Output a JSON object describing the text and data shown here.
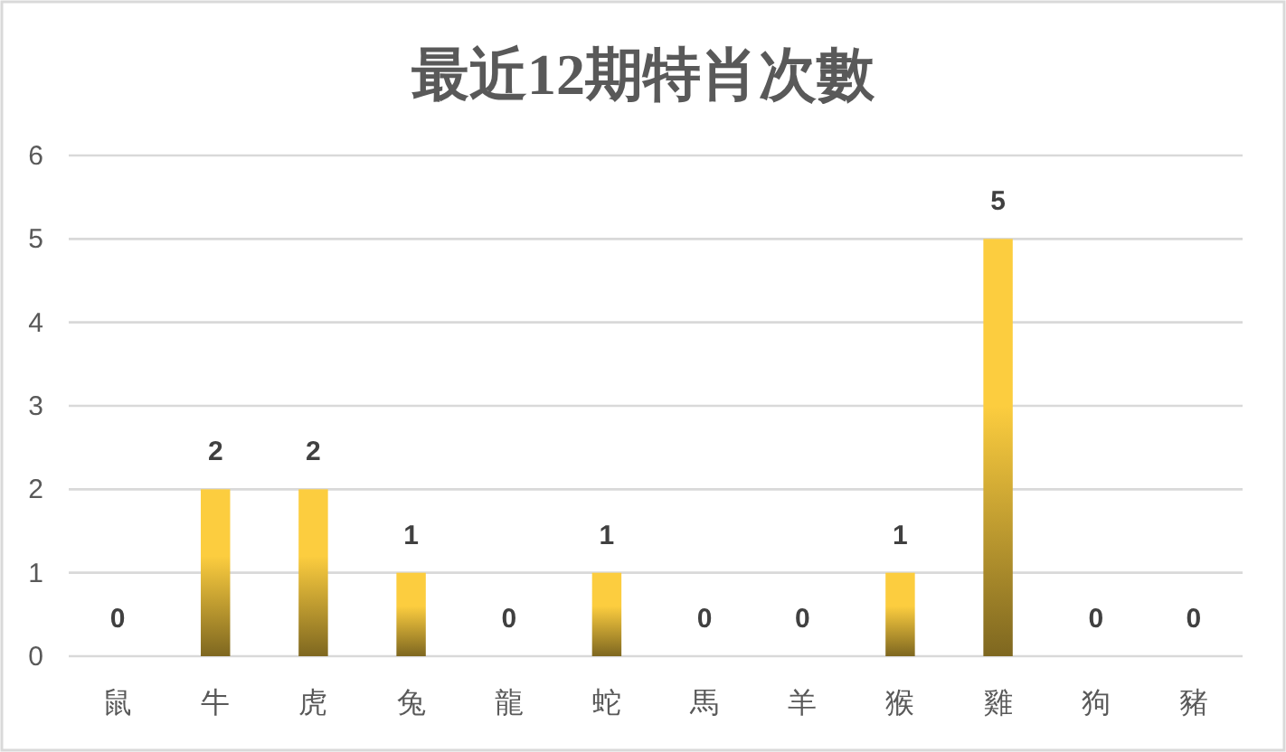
{
  "chart_data": {
    "type": "bar",
    "title": "最近12期特肖次數",
    "categories": [
      "鼠",
      "牛",
      "虎",
      "兔",
      "龍",
      "蛇",
      "馬",
      "羊",
      "猴",
      "雞",
      "狗",
      "豬"
    ],
    "values": [
      0,
      2,
      2,
      1,
      0,
      1,
      0,
      0,
      1,
      5,
      0,
      0
    ],
    "color": "#fccd3f",
    "ylim": [
      0,
      6
    ],
    "yticks": [
      0,
      1,
      2,
      3,
      4,
      5,
      6
    ],
    "grid": "y",
    "data_labels": true
  }
}
